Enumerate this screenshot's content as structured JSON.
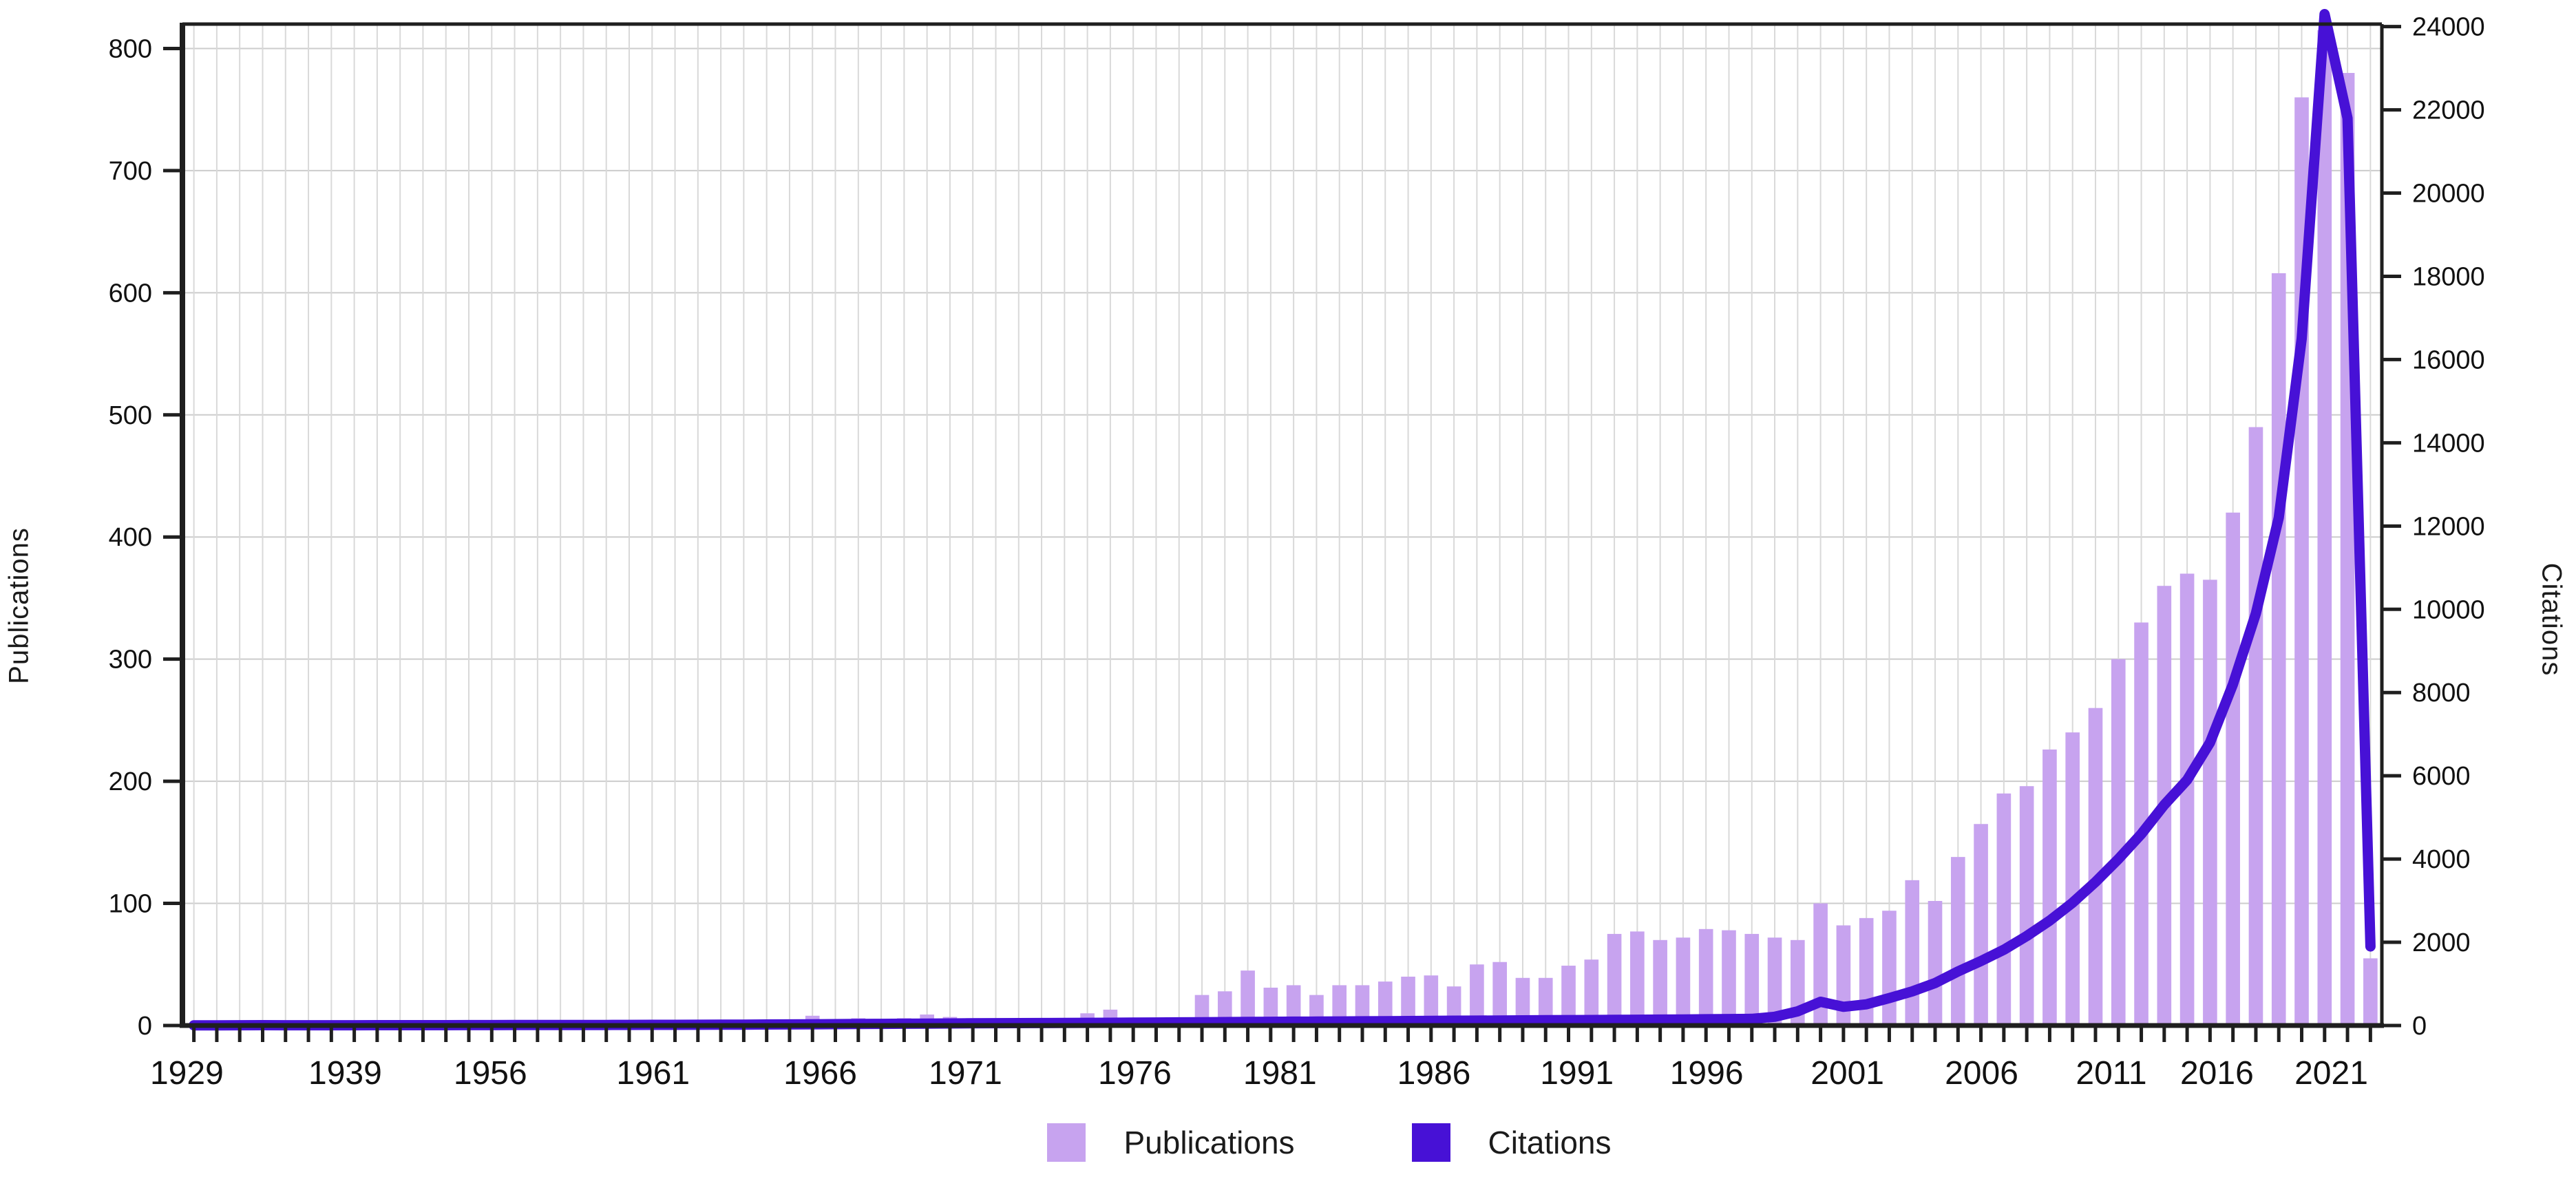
{
  "figure": {
    "background": "#ffffff",
    "left_axis": {
      "title": "Publications",
      "tick_labels": [
        "0",
        "100",
        "200",
        "300",
        "400",
        "500",
        "600",
        "700",
        "800"
      ],
      "tick_step": 100,
      "axis_max": 820
    },
    "right_axis": {
      "title": "Citations",
      "tick_labels": [
        "0",
        "2000",
        "4000",
        "6000",
        "8000",
        "10000",
        "12000",
        "14000",
        "16000",
        "18000",
        "20000",
        "22000",
        "24000"
      ],
      "tick_step": 2000,
      "axis_max": 24060
    },
    "x_axis": {
      "tick_labels": [
        "1929",
        "1939",
        "1956",
        "1961",
        "1966",
        "1971",
        "1976",
        "1981",
        "1986",
        "1991",
        "1996",
        "2001",
        "2006",
        "2011",
        "2016",
        "2021"
      ],
      "label_positions_pct": [
        0.2,
        7.4,
        14.0,
        21.4,
        29.0,
        35.6,
        43.3,
        49.9,
        56.9,
        63.4,
        69.3,
        75.7,
        81.8,
        87.7,
        92.5,
        97.7
      ]
    },
    "legend": [
      {
        "label": "Publications",
        "swatch_color": "#c7a3ef"
      },
      {
        "label": "Citations",
        "swatch_color": "#4711d6"
      }
    ],
    "colors": {
      "bar": "#c7a3ef",
      "line": "#4711d6",
      "grid_vertical": "#d9d9d9",
      "grid_horizontal": "#cccccc",
      "axis": "#1f1f1f",
      "text": "#111111"
    }
  },
  "chart_data": {
    "type": "bar+line",
    "n_slots": 96,
    "x_tick_labels": [
      "1929",
      "1939",
      "1956",
      "1961",
      "1966",
      "1971",
      "1976",
      "1981",
      "1986",
      "1991",
      "1996",
      "2001",
      "2006",
      "2011",
      "2016",
      "2021"
    ],
    "left_axis_range": [
      0,
      820
    ],
    "right_axis_range": [
      0,
      24060
    ],
    "grid": "on",
    "legend_position": "bottom-center",
    "series": [
      {
        "name": "Publications",
        "type": "bar",
        "axis": "left",
        "values": [
          2,
          1,
          1,
          4,
          1,
          2,
          1,
          1,
          2,
          1,
          2,
          1,
          2,
          1,
          1,
          2,
          1,
          2,
          2,
          1,
          2,
          1,
          2,
          1,
          3,
          2,
          3,
          8,
          5,
          6,
          5,
          6,
          9,
          7,
          6,
          5,
          4,
          3,
          6,
          10,
          13,
          5,
          3,
          2,
          25,
          28,
          45,
          31,
          33,
          25,
          33,
          33,
          36,
          40,
          41,
          32,
          50,
          52,
          39,
          39,
          49,
          54,
          75,
          77,
          70,
          72,
          79,
          78,
          75,
          72,
          70,
          100,
          82,
          88,
          94,
          119,
          102,
          138,
          165,
          190,
          196,
          226,
          240,
          260,
          300,
          330,
          360,
          370,
          365,
          420,
          490,
          616,
          760,
          815,
          780,
          55
        ]
      },
      {
        "name": "Citations",
        "type": "line",
        "axis": "right",
        "values": [
          5,
          5,
          6,
          8,
          6,
          6,
          7,
          7,
          8,
          8,
          9,
          9,
          10,
          10,
          11,
          12,
          12,
          13,
          14,
          15,
          16,
          17,
          18,
          20,
          22,
          24,
          26,
          30,
          33,
          36,
          40,
          43,
          47,
          50,
          53,
          56,
          58,
          60,
          62,
          64,
          66,
          69,
          72,
          76,
          80,
          83,
          86,
          89,
          92,
          95,
          98,
          101,
          104,
          108,
          112,
          115,
          118,
          121,
          124,
          127,
          130,
          133,
          136,
          139,
          142,
          145,
          150,
          155,
          160,
          210,
          340,
          570,
          450,
          510,
          660,
          820,
          1020,
          1300,
          1550,
          1820,
          2150,
          2520,
          2950,
          3450,
          4000,
          4600,
          5300,
          5900,
          6800,
          8200,
          9900,
          12200,
          16500,
          24300,
          21800,
          1900
        ]
      }
    ]
  }
}
